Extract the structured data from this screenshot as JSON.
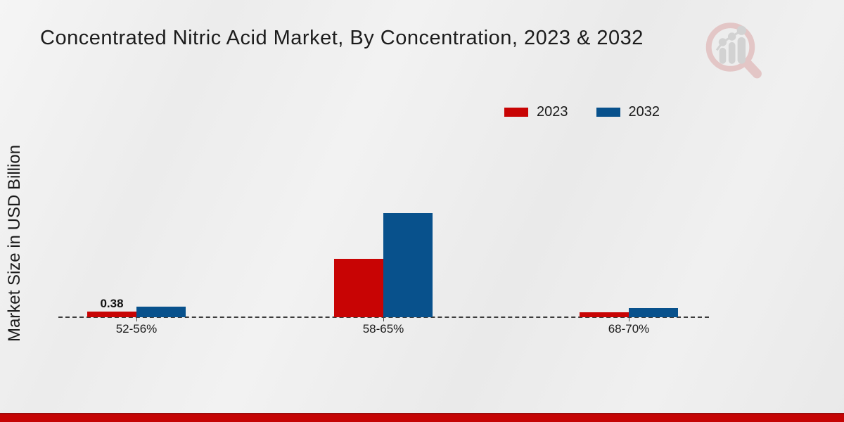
{
  "chart_data": {
    "type": "bar",
    "title": "Concentrated Nitric Acid Market, By Concentration, 2023 & 2032",
    "xlabel": "",
    "ylabel": "Market Size in USD Billion",
    "categories": [
      "52-56%",
      "58-65%",
      "68-70%"
    ],
    "series": [
      {
        "name": "2023",
        "color": "#c80404",
        "values": [
          0.38,
          3.95,
          0.33
        ]
      },
      {
        "name": "2032",
        "color": "#08518c",
        "values": [
          0.72,
          7.05,
          0.62
        ]
      }
    ],
    "value_labels": [
      [
        "0.38",
        "",
        ""
      ],
      [
        "",
        "",
        ""
      ]
    ],
    "ylim": [
      0,
      8.6
    ],
    "grid": false,
    "axis_line_style": "dashed",
    "legend_position": "top-right"
  },
  "colors": {
    "series_2023": "#c80404",
    "series_2032": "#08518c",
    "footer_banner": "#c50404",
    "title_text": "#1c1c1c",
    "logo_ring": "#e3c6c6",
    "logo_figures": "#d2d2d2"
  },
  "logo": {
    "name": "market-research-future-logo"
  }
}
